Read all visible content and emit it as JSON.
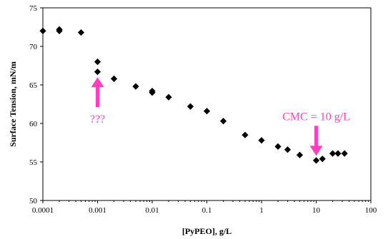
{
  "chart_data": {
    "type": "scatter",
    "title": "",
    "xlabel": "[PyPEO], g/L",
    "ylabel": "Surface Tension, mN/m",
    "xscale": "log",
    "xlim": [
      0.0001,
      100
    ],
    "ylim": [
      50,
      75
    ],
    "x_ticks": [
      "0.0001",
      "0.001",
      "0.01",
      "0.1",
      "1",
      "10",
      "100"
    ],
    "y_ticks": [
      "50",
      "55",
      "60",
      "65",
      "70",
      "75"
    ],
    "grid": false,
    "legend": "none",
    "series": [
      {
        "x": [
          0.0001,
          0.0002,
          0.0002,
          0.0005,
          0.001,
          0.001,
          0.002,
          0.005,
          0.01,
          0.01,
          0.02,
          0.05,
          0.1,
          0.2,
          0.5,
          1,
          2,
          3,
          5,
          10,
          13,
          20,
          25,
          33
        ],
        "y": [
          72.0,
          72.2,
          72.0,
          71.8,
          68.0,
          66.7,
          65.8,
          64.8,
          64.2,
          64.0,
          63.4,
          62.2,
          61.6,
          60.3,
          58.5,
          57.8,
          57.0,
          56.6,
          55.9,
          55.2,
          55.4,
          56.1,
          56.1,
          56.1
        ]
      }
    ],
    "annotations": [
      {
        "text": "???",
        "arrow_target": {
          "x": 0.001,
          "y": 66.0
        },
        "direction": "up"
      },
      {
        "text": "CMC = 10 g/L",
        "arrow_target": {
          "x": 10,
          "y": 55.8
        },
        "direction": "down"
      }
    ],
    "colors": {
      "marker": "#000000",
      "annotation": "#ff3fbf",
      "axis": "#000000"
    }
  }
}
